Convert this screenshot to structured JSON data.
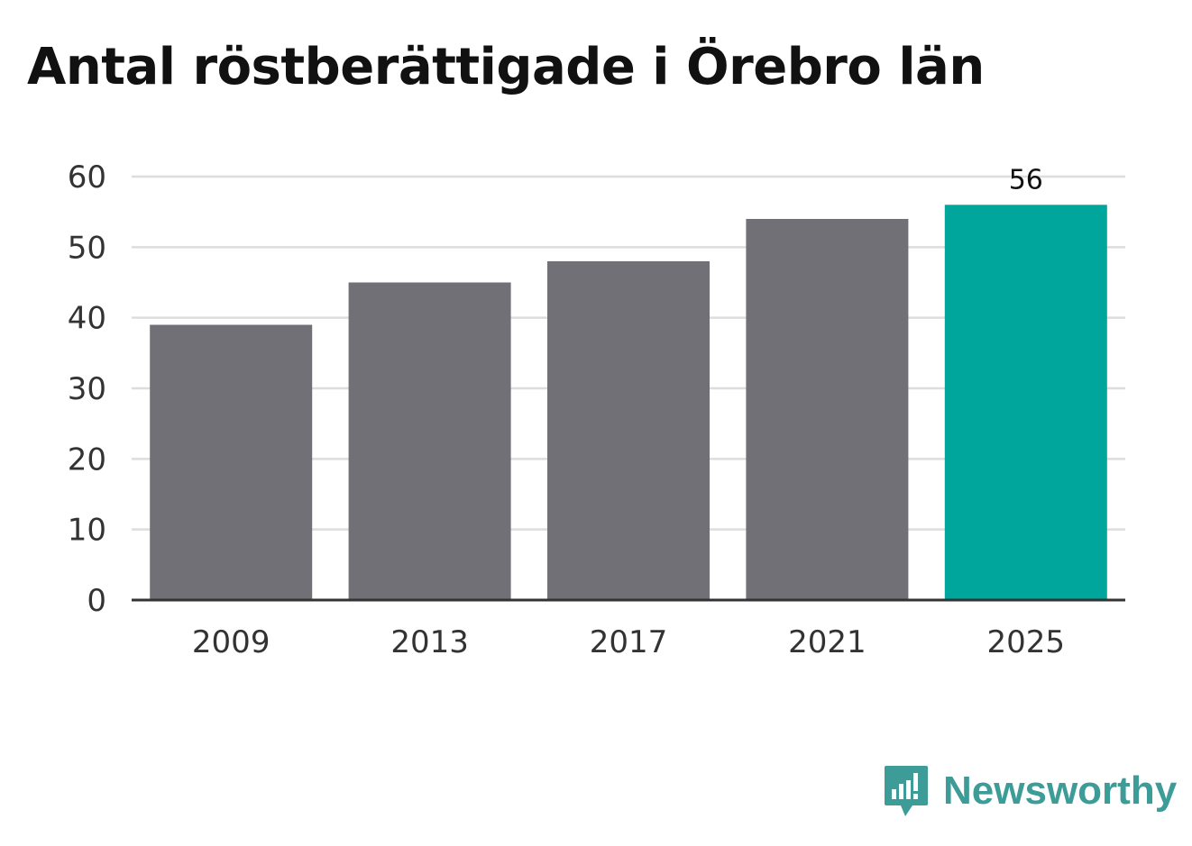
{
  "title": "Antal röstberättigade i Örebro län",
  "brand": {
    "name": "Newsworthy",
    "icon": "newsworthy-logo-icon",
    "color": "#3d9c97"
  },
  "colors": {
    "bar": "#717076",
    "highlight": "#00a59b",
    "grid": "#dddddd",
    "axis": "#333333"
  },
  "chart_data": {
    "type": "bar",
    "title": "Antal röstberättigade i Örebro län",
    "categories": [
      "2009",
      "2013",
      "2017",
      "2021",
      "2025"
    ],
    "values": [
      39,
      45,
      48,
      54,
      56
    ],
    "highlight_index": 4,
    "data_labels": [
      {
        "index": 4,
        "text": "56"
      }
    ],
    "xlabel": "",
    "ylabel": "",
    "ylim": [
      0,
      60
    ],
    "yticks": [
      0,
      10,
      20,
      30,
      40,
      50,
      60
    ],
    "grid": true,
    "legend": "none"
  }
}
